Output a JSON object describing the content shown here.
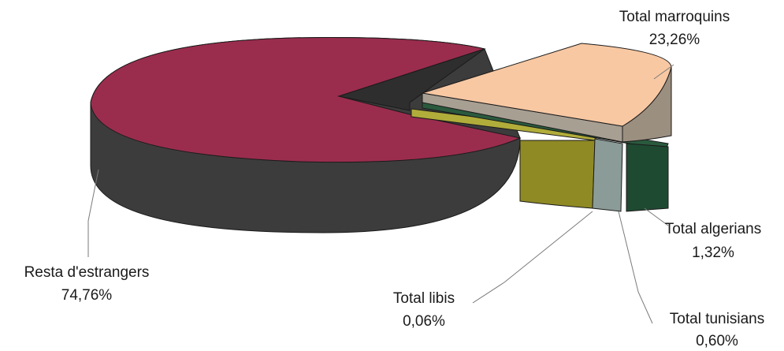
{
  "chart_data": {
    "type": "pie",
    "title": "",
    "legend": "none",
    "slices": [
      {
        "label": "Resta d'estrangers",
        "value_text": "74,76%",
        "value": 74.76,
        "color": "#9a2d4e"
      },
      {
        "label": "Total marroquins",
        "value_text": "23,26%",
        "value": 23.26,
        "color": "#f8c8a3"
      },
      {
        "label": "Total algerians",
        "value_text": "1,32%",
        "value": 1.32,
        "color": "#1f4a32"
      },
      {
        "label": "Total tunisians",
        "value_text": "0,60%",
        "value": 0.6,
        "color": "#8b9c98"
      },
      {
        "label": "Total libis",
        "value_text": "0,06%",
        "value": 0.06,
        "color": "#b1ad3a"
      }
    ]
  }
}
